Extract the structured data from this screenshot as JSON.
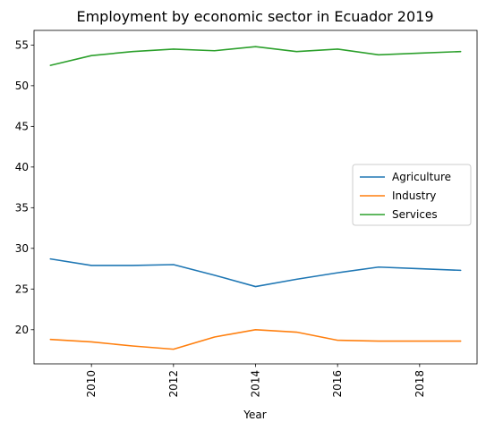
{
  "chart_data": {
    "type": "line",
    "title": "Employment by economic sector in Ecuador 2019",
    "xlabel": "Year",
    "ylabel": "",
    "xlim": [
      2008.6,
      2019.4
    ],
    "ylim": [
      15.8,
      56.8
    ],
    "xticks": [
      2010,
      2012,
      2014,
      2016,
      2018
    ],
    "yticks": [
      20,
      25,
      30,
      35,
      40,
      45,
      50,
      55
    ],
    "x": [
      2009,
      2010,
      2011,
      2012,
      2013,
      2014,
      2015,
      2016,
      2017,
      2018,
      2019
    ],
    "series": [
      {
        "name": "Agriculture",
        "color": "#1f77b4",
        "values": [
          28.7,
          27.9,
          27.9,
          28.0,
          26.7,
          25.3,
          26.2,
          27.0,
          27.7,
          27.5,
          27.3
        ]
      },
      {
        "name": "Industry",
        "color": "#ff7f0e",
        "values": [
          18.8,
          18.5,
          18.0,
          17.6,
          19.1,
          20.0,
          19.7,
          18.7,
          18.6,
          18.6,
          18.6
        ]
      },
      {
        "name": "Services",
        "color": "#2ca02c",
        "values": [
          52.5,
          53.7,
          54.2,
          54.5,
          54.3,
          54.8,
          54.2,
          54.5,
          53.8,
          54.0,
          54.2
        ]
      }
    ],
    "legend": "center-right",
    "grid": false
  }
}
